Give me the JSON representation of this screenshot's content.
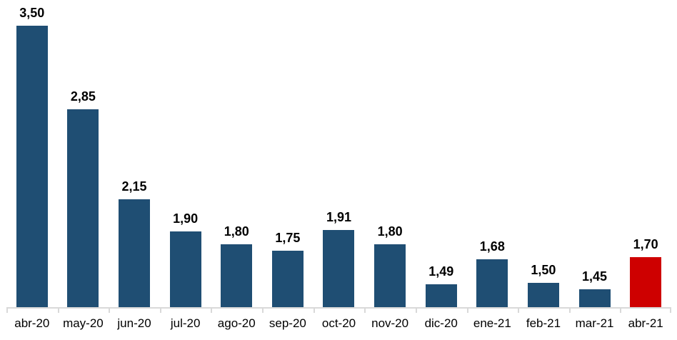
{
  "chart_data": {
    "type": "bar",
    "title": "",
    "xlabel": "",
    "ylabel": "",
    "categories": [
      "abr-20",
      "may-20",
      "jun-20",
      "jul-20",
      "ago-20",
      "sep-20",
      "oct-20",
      "nov-20",
      "dic-20",
      "ene-21",
      "feb-21",
      "mar-21",
      "abr-21"
    ],
    "values": [
      3.5,
      2.85,
      2.15,
      1.9,
      1.8,
      1.75,
      1.91,
      1.8,
      1.49,
      1.68,
      1.5,
      1.45,
      1.7
    ],
    "value_labels": [
      "3,50",
      "2,85",
      "2,15",
      "1,90",
      "1,80",
      "1,75",
      "1,91",
      "1,80",
      "1,49",
      "1,68",
      "1,50",
      "1,45",
      "1,70"
    ],
    "highlight_index": 12,
    "ylim": [
      1.31,
      3.7
    ],
    "grid": false,
    "legend": false,
    "colors": {
      "bar": "#1F4E73",
      "highlight": "#CE0000",
      "axis": "#D9D9D9",
      "label": "#000000"
    }
  }
}
